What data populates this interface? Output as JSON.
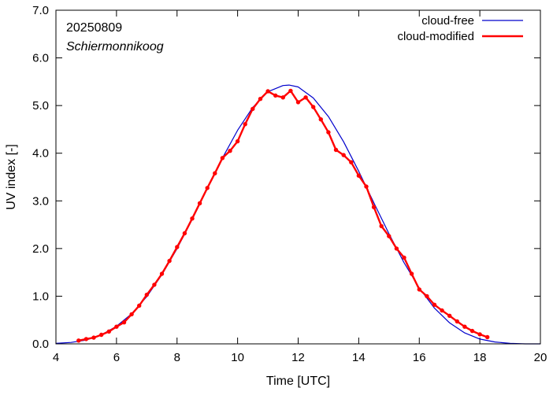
{
  "chart_data": {
    "type": "line",
    "xlabel": "Time  [UTC]",
    "ylabel": "UV index  [-]",
    "xlim": [
      4,
      20
    ],
    "ylim": [
      0,
      7
    ],
    "x_ticks": [
      "4",
      "6",
      "8",
      "10",
      "12",
      "14",
      "16",
      "18",
      "20"
    ],
    "y_ticks": [
      "0.0",
      "1.0",
      "2.0",
      "3.0",
      "4.0",
      "5.0",
      "6.0",
      "7.0"
    ],
    "annotations": {
      "date": "20250809",
      "location": "Schiermonnikoog"
    },
    "legend_position": "top-right",
    "grid": false,
    "series": [
      {
        "name": "cloud-free",
        "color": "#0000cc",
        "markers": false,
        "x": [
          4.0,
          4.5,
          5.0,
          5.5,
          6.0,
          6.5,
          7.0,
          7.5,
          8.0,
          8.5,
          9.0,
          9.5,
          10.0,
          10.5,
          11.0,
          11.5,
          11.7,
          12.0,
          12.5,
          13.0,
          13.5,
          14.0,
          14.5,
          15.0,
          15.5,
          16.0,
          16.5,
          17.0,
          17.5,
          18.0,
          18.5,
          19.0,
          19.5,
          20.0
        ],
        "y": [
          0.01,
          0.03,
          0.08,
          0.19,
          0.37,
          0.63,
          0.99,
          1.45,
          2.0,
          2.61,
          3.27,
          3.9,
          4.48,
          4.96,
          5.29,
          5.42,
          5.43,
          5.39,
          5.16,
          4.77,
          4.24,
          3.62,
          2.96,
          2.31,
          1.7,
          1.17,
          0.75,
          0.44,
          0.23,
          0.1,
          0.04,
          0.01,
          0.0,
          0.0
        ]
      },
      {
        "name": "cloud-modified",
        "color": "#ff0000",
        "markers": true,
        "x": [
          4.75,
          5.0,
          5.25,
          5.5,
          5.75,
          6.0,
          6.25,
          6.5,
          6.75,
          7.0,
          7.25,
          7.5,
          7.75,
          8.0,
          8.25,
          8.5,
          8.75,
          9.0,
          9.25,
          9.5,
          9.75,
          10.0,
          10.25,
          10.5,
          10.75,
          11.0,
          11.25,
          11.5,
          11.75,
          12.0,
          12.25,
          12.5,
          12.75,
          13.0,
          13.25,
          13.5,
          13.75,
          14.0,
          14.25,
          14.5,
          14.75,
          15.0,
          15.25,
          15.5,
          15.75,
          16.0,
          16.25,
          16.5,
          16.75,
          17.0,
          17.25,
          17.5,
          17.75,
          18.0,
          18.25
        ],
        "y": [
          0.07,
          0.1,
          0.13,
          0.19,
          0.26,
          0.36,
          0.45,
          0.62,
          0.8,
          1.03,
          1.24,
          1.47,
          1.74,
          2.03,
          2.32,
          2.63,
          2.95,
          3.27,
          3.58,
          3.9,
          4.05,
          4.25,
          4.61,
          4.93,
          5.14,
          5.3,
          5.21,
          5.17,
          5.31,
          5.07,
          5.17,
          4.97,
          4.71,
          4.44,
          4.07,
          3.96,
          3.81,
          3.53,
          3.3,
          2.87,
          2.47,
          2.26,
          2.0,
          1.81,
          1.47,
          1.14,
          1.0,
          0.82,
          0.7,
          0.59,
          0.47,
          0.36,
          0.27,
          0.2,
          0.14
        ]
      }
    ]
  }
}
